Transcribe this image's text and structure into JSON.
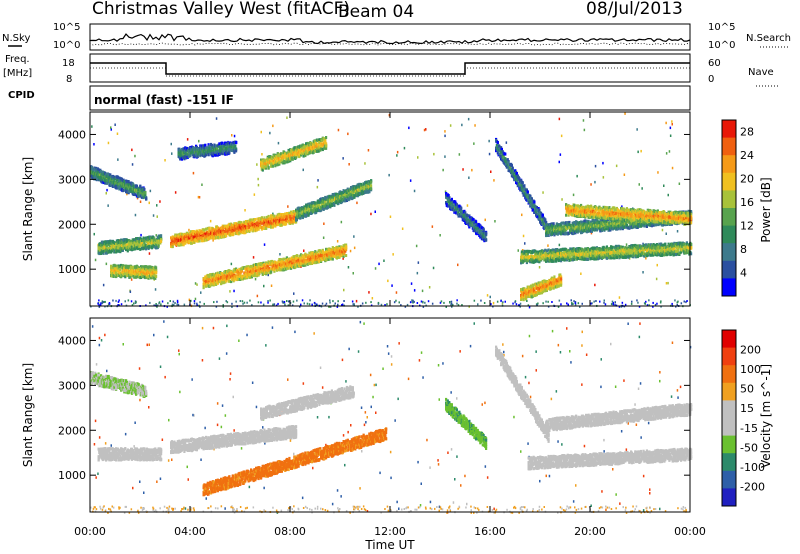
{
  "header": {
    "title": "Christmas Valley West (fitACF)",
    "beam": "Beam 04",
    "date": "08/Jul/2013"
  },
  "labels": {
    "nsky": "N.Sky",
    "nsearch": "N.Search",
    "freq": "Freq.",
    "freq_unit": "[MHz]",
    "nave": "Nave",
    "cpid": "CPID",
    "cpid_value": "normal (fast) -151 IF",
    "noise_ticks": [
      "10^5",
      "10^0"
    ],
    "freq_ticks": [
      "18",
      "8"
    ],
    "nave_ticks": [
      "60",
      "0"
    ]
  },
  "chart_data": [
    {
      "type": "heatmap",
      "title": "",
      "xlabel": "Time UT",
      "ylabel": "Slant Range [km]",
      "xlim": [
        0,
        24
      ],
      "ylim": [
        180,
        4500
      ],
      "x_ticks": [
        "00:00",
        "04:00",
        "08:00",
        "12:00",
        "16:00",
        "20:00",
        "00:00"
      ],
      "y_ticks": [
        1000,
        2000,
        3000,
        4000
      ],
      "colorbar": {
        "label": "Power [dB]",
        "ticks": [
          4,
          8,
          12,
          16,
          20,
          24,
          28
        ],
        "range": [
          0,
          30
        ],
        "colors": [
          "#0000ff",
          "#2a4fa0",
          "#3d7a8c",
          "#2f8a5a",
          "#58a34e",
          "#a8c23a",
          "#f0c020",
          "#f59a18",
          "#f06010",
          "#e81808"
        ]
      },
      "features": [
        {
          "t0": 0.0,
          "t1": 2.2,
          "r0": 3200,
          "r1": 2700,
          "level": 14
        },
        {
          "t0": 0.3,
          "t1": 2.8,
          "r0": 1500,
          "r1": 1650,
          "level": 18
        },
        {
          "t0": 0.8,
          "t1": 2.6,
          "r0": 1000,
          "r1": 950,
          "level": 22
        },
        {
          "t0": 3.2,
          "t1": 8.2,
          "r0": 1650,
          "r1": 2200,
          "level": 27
        },
        {
          "t0": 4.5,
          "t1": 10.2,
          "r0": 750,
          "r1": 1450,
          "level": 25
        },
        {
          "t0": 6.8,
          "t1": 9.4,
          "r0": 3350,
          "r1": 3850,
          "level": 22
        },
        {
          "t0": 8.2,
          "t1": 11.2,
          "r0": 2250,
          "r1": 2900,
          "level": 17
        },
        {
          "t0": 3.5,
          "t1": 5.8,
          "r0": 3600,
          "r1": 3750,
          "level": 12
        },
        {
          "t0": 14.2,
          "t1": 15.8,
          "r0": 2600,
          "r1": 1750,
          "level": 11
        },
        {
          "t0": 16.2,
          "t1": 18.3,
          "r0": 3800,
          "r1": 1900,
          "level": 12
        },
        {
          "t0": 17.2,
          "t1": 24.0,
          "r0": 1300,
          "r1": 1500,
          "level": 19
        },
        {
          "t0": 17.2,
          "t1": 18.8,
          "r0": 450,
          "r1": 800,
          "level": 25
        },
        {
          "t0": 18.2,
          "t1": 24.0,
          "r0": 1900,
          "r1": 2200,
          "level": 16
        },
        {
          "t0": 19.0,
          "t1": 24.0,
          "r0": 2350,
          "r1": 2150,
          "level": 24
        }
      ]
    },
    {
      "type": "heatmap",
      "title": "",
      "xlabel": "Time UT",
      "ylabel": "Slant Range [km]",
      "xlim": [
        0,
        24
      ],
      "ylim": [
        180,
        4500
      ],
      "x_ticks": [
        "00:00",
        "04:00",
        "08:00",
        "12:00",
        "16:00",
        "20:00",
        "00:00"
      ],
      "y_ticks": [
        1000,
        2000,
        3000,
        4000
      ],
      "colorbar": {
        "label": "Velocity [m s^-1]",
        "ticks": [
          200,
          100,
          50,
          15,
          -15,
          -50,
          -100,
          -200
        ],
        "colors": [
          "#2020c0",
          "#2e5fa8",
          "#2c8a6a",
          "#6ac030",
          "#c0c0c0",
          "#c0c0c0",
          "#f0a020",
          "#f07010",
          "#f04010",
          "#e00000"
        ]
      },
      "features": [
        {
          "t0": 0.0,
          "t1": 2.2,
          "r0": 3200,
          "r1": 2900,
          "level": 15
        },
        {
          "t0": 0.3,
          "t1": 2.8,
          "r0": 1500,
          "r1": 1500,
          "level": 0
        },
        {
          "t0": 3.2,
          "t1": 8.2,
          "r0": 1650,
          "r1": 2000,
          "level": 0
        },
        {
          "t0": 4.5,
          "t1": 11.8,
          "r0": 700,
          "r1": 1950,
          "level": -60
        },
        {
          "t0": 6.8,
          "t1": 10.5,
          "r0": 2400,
          "r1": 2900,
          "level": 0
        },
        {
          "t0": 14.2,
          "t1": 15.8,
          "r0": 2600,
          "r1": 1750,
          "level": 40
        },
        {
          "t0": 16.2,
          "t1": 18.3,
          "r0": 3800,
          "r1": 1900,
          "level": 0
        },
        {
          "t0": 17.5,
          "t1": 24.0,
          "r0": 1300,
          "r1": 1500,
          "level": 0
        },
        {
          "t0": 18.2,
          "t1": 24.0,
          "r0": 2150,
          "r1": 2500,
          "level": 0
        }
      ]
    }
  ]
}
